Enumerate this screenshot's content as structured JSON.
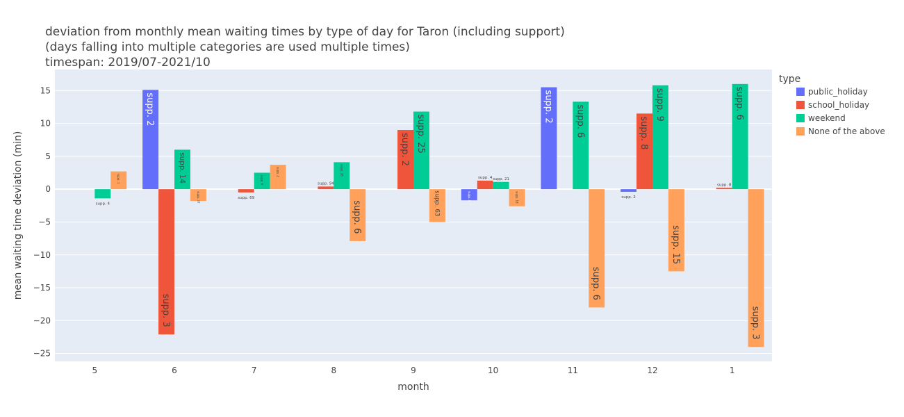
{
  "chart_data": {
    "type": "bar",
    "title_lines": [
      "deviation from monthly mean waiting times by type of day for Taron (including support)",
      "(days falling into multiple categories are used multiple times)",
      "timespan: 2019/07-2021/10"
    ],
    "xlabel": "month",
    "ylabel": "mean waiting time deviation (min)",
    "categories": [
      "5",
      "6",
      "7",
      "8",
      "9",
      "10",
      "11",
      "12",
      "1"
    ],
    "ylim": [
      -26.2,
      18.2
    ],
    "yticks": [
      -25,
      -20,
      -15,
      -10,
      -5,
      0,
      5,
      10,
      15
    ],
    "grid": true,
    "legend_title": "type",
    "legend_position": "right",
    "series": [
      {
        "name": "public_holiday",
        "color": "#636efa",
        "values": [
          null,
          15.1,
          null,
          null,
          null,
          -1.7,
          15.5,
          -0.4,
          null
        ],
        "labels": [
          null,
          "supp. 2",
          null,
          null,
          null,
          "supp. 4",
          "supp. 2",
          "supp. 2",
          null
        ]
      },
      {
        "name": "school_holiday",
        "color": "#ef553b",
        "values": [
          null,
          -22.1,
          -0.5,
          0.4,
          9.0,
          1.3,
          null,
          11.5,
          0.2
        ],
        "labels": [
          null,
          "supp. 3",
          "supp. 69",
          "supp. 94",
          "supp. 2",
          "supp. 4",
          null,
          "supp. 8",
          "supp. 8"
        ]
      },
      {
        "name": "weekend",
        "color": "#00cc96",
        "values": [
          -1.4,
          6.0,
          2.5,
          4.1,
          11.8,
          1.1,
          13.3,
          15.8,
          16.0
        ],
        "labels": [
          "supp. 4",
          "supp. 14",
          "supp. 6",
          "supp. 28",
          "supp. 25",
          "supp. 21",
          "supp. 6",
          "supp. 9",
          "supp. 6"
        ]
      },
      {
        "name": "None of the above",
        "color": "#ffa15a",
        "values": [
          2.7,
          -1.8,
          3.7,
          -7.9,
          -5.0,
          -2.6,
          -18.0,
          -12.5,
          -24.0
        ],
        "labels": [
          "supp. 1",
          "supp. 37",
          "supp. 2",
          "supp. 6",
          "supp. 63",
          "supp. 18",
          "supp. 6",
          "supp. 15",
          "supp. 3"
        ]
      }
    ]
  }
}
